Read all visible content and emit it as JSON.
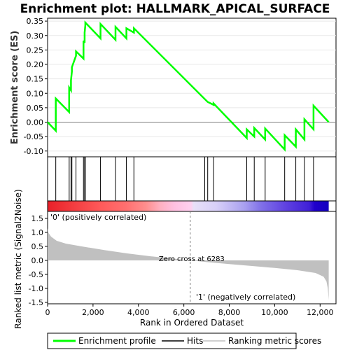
{
  "chart_data": {
    "type": "line",
    "title": "Enrichment plot: HALLMARK_APICAL_SURFACE",
    "xlabel": "Rank in Ordered Dataset",
    "es_ylabel": "Enrichment score (ES)",
    "metric_ylabel": "Ranked list metric (Signal2Noise)",
    "xlim": [
      0,
      12700
    ],
    "es_ylim": [
      -0.12,
      0.36
    ],
    "metric_ylim": [
      -1.55,
      1.75
    ],
    "x_ticks": [
      "0",
      "2,000",
      "4,000",
      "6,000",
      "8,000",
      "10,000",
      "12,000"
    ],
    "x_tick_values": [
      0,
      2000,
      4000,
      6000,
      8000,
      10000,
      12000
    ],
    "es_ticks": [
      "0.35",
      "0.30",
      "0.25",
      "0.20",
      "0.15",
      "0.10",
      "0.05",
      "0.00",
      "-0.05",
      "-0.10"
    ],
    "es_tick_values": [
      0.35,
      0.3,
      0.25,
      0.2,
      0.15,
      0.1,
      0.05,
      0.0,
      -0.05,
      -0.1
    ],
    "metric_ticks": [
      "1.5",
      "1.0",
      "0.5",
      "0.0",
      "-0.5",
      "-1.0",
      "-1.5"
    ],
    "metric_tick_values": [
      1.5,
      1.0,
      0.5,
      0.0,
      -0.5,
      -1.0,
      -1.5
    ],
    "n_genes": 12380,
    "zero_cross_rank": 6283,
    "zero_cross_label": "Zero cross at 6283",
    "pos_label": "'0' (positively correlated)",
    "neg_label": "'1' (negatively correlated)",
    "hits": [
      360,
      950,
      1030,
      1070,
      1250,
      1580,
      1630,
      1660,
      2330,
      2990,
      3470,
      3800,
      6920,
      7050,
      7310,
      8770,
      9100,
      9580,
      10440,
      10930,
      11310,
      11710
    ],
    "es_start": 0.0,
    "es_end": 0.0,
    "es_valleys_before_hits": [
      -0.03,
      0.035,
      0.11,
      0.175,
      0.23,
      0.22,
      0.275,
      0.335,
      0.29,
      0.285,
      0.29,
      0.31,
      0.08,
      0.07,
      0.06,
      -0.055,
      -0.05,
      -0.06,
      -0.095,
      -0.085,
      -0.06,
      -0.025
    ],
    "es_peaks_after_hits": [
      0.082,
      0.12,
      0.145,
      0.19,
      0.245,
      0.282,
      0.31,
      0.345,
      0.34,
      0.33,
      0.325,
      0.325,
      0.08,
      0.07,
      0.065,
      -0.025,
      -0.02,
      -0.022,
      -0.045,
      -0.025,
      0.01,
      0.057
    ],
    "metric_profile": [
      [
        0,
        1.15
      ],
      [
        40,
        0.98
      ],
      [
        150,
        0.85
      ],
      [
        400,
        0.7
      ],
      [
        800,
        0.6
      ],
      [
        1500,
        0.5
      ],
      [
        2500,
        0.37
      ],
      [
        3500,
        0.25
      ],
      [
        4500,
        0.15
      ],
      [
        5500,
        0.07
      ],
      [
        6283,
        0.0
      ],
      [
        7000,
        -0.06
      ],
      [
        8000,
        -0.13
      ],
      [
        9000,
        -0.2
      ],
      [
        10000,
        -0.27
      ],
      [
        11000,
        -0.35
      ],
      [
        11800,
        -0.45
      ],
      [
        12150,
        -0.58
      ],
      [
        12280,
        -0.75
      ],
      [
        12340,
        -1.0
      ],
      [
        12380,
        -1.42
      ]
    ],
    "legend": [
      "Enrichment profile",
      "Hits",
      "Ranking metric scores"
    ],
    "colors": {
      "es_line": "#00ff00",
      "hit_line": "#000000",
      "metric_fill": "#c0c0c0",
      "pos_label": "#cc0000",
      "neg_label": "#0000cc",
      "zero_line": "#808080"
    },
    "colorbar_stops": [
      [
        0.0,
        "#e8202a"
      ],
      [
        0.05,
        "#ee3035"
      ],
      [
        0.19,
        "#ff5a5a"
      ],
      [
        0.28,
        "#ff7070"
      ],
      [
        0.35,
        "#ff8e8e"
      ],
      [
        0.4,
        "#ffb0c0"
      ],
      [
        0.45,
        "#ffc0e0"
      ],
      [
        0.51,
        "#ffd0f0"
      ],
      [
        0.52,
        "#e8e0f8"
      ],
      [
        0.6,
        "#d8d0f8"
      ],
      [
        0.7,
        "#a9a0f0"
      ],
      [
        0.76,
        "#8070e8"
      ],
      [
        0.85,
        "#5e40e0"
      ],
      [
        0.93,
        "#4020d8"
      ],
      [
        0.95,
        "#2000cc"
      ],
      [
        1.0,
        "#1400c0"
      ]
    ]
  }
}
